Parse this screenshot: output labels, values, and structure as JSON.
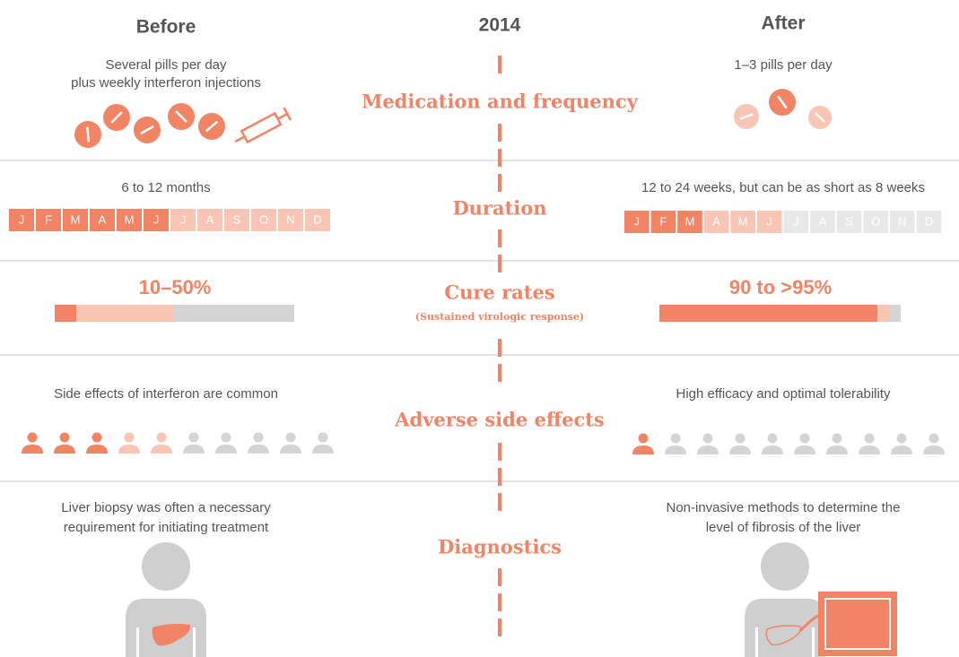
{
  "header": {
    "before": "Before",
    "year": "2014",
    "after": "After"
  },
  "rows": [
    {
      "label": "Medication and frequency",
      "before": [
        "Several pills per day",
        "plus weekly interferon injections"
      ],
      "after": [
        "1–3 pills per day"
      ]
    },
    {
      "label": "Duration",
      "before": [
        "6 to 12 months"
      ],
      "after": [
        "12 to 24 weeks, but can be as short as 8 weeks"
      ]
    },
    {
      "label": "Cure rates",
      "sublabel": "(Sustained virologic response)",
      "before": [
        "10–50%"
      ],
      "after": [
        "90 to >95%"
      ]
    },
    {
      "label": "Adverse side effects",
      "before": [
        "Side effects of interferon are common"
      ],
      "after": [
        "High efficacy and optimal tolerability"
      ]
    },
    {
      "label": "Diagnostics",
      "before": [
        "Liver biopsy was often a necessary",
        "requirement for initiating treatment"
      ],
      "after": [
        "Non-invasive methods to determine the",
        "level of fibrosis of the liver"
      ]
    }
  ],
  "months": [
    "J",
    "F",
    "M",
    "A",
    "M",
    "J",
    "J",
    "A",
    "S",
    "O",
    "N",
    "D"
  ]
}
